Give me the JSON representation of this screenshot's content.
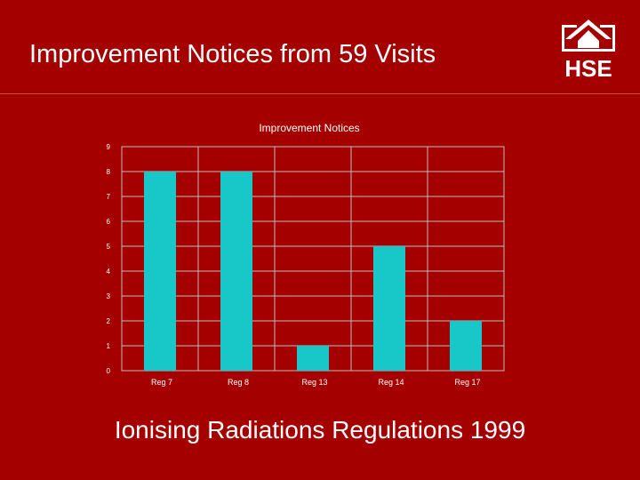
{
  "slide": {
    "title": "Improvement Notices from 59 Visits",
    "footer": "Ionising Radiations Regulations 1999"
  },
  "logo": {
    "text": "HSE",
    "icon": "hse-house-logo-icon",
    "color": "#ffffff"
  },
  "colors": {
    "background": "#a50000",
    "bar": "#18c8c8",
    "grid": "#bdbdbd"
  },
  "chart_data": {
    "type": "bar",
    "title": "Improvement Notices",
    "categories": [
      "Reg 7",
      "Reg 8",
      "Reg 13",
      "Reg 14",
      "Reg 17"
    ],
    "values": [
      8,
      8,
      1,
      5,
      2
    ],
    "y_ticks": [
      "0",
      "1",
      "2",
      "3",
      "4",
      "5",
      "6",
      "7",
      "8",
      "9"
    ],
    "ylim": [
      0,
      9
    ],
    "xlabel": "",
    "ylabel": "",
    "grid": true,
    "legend": "none"
  }
}
